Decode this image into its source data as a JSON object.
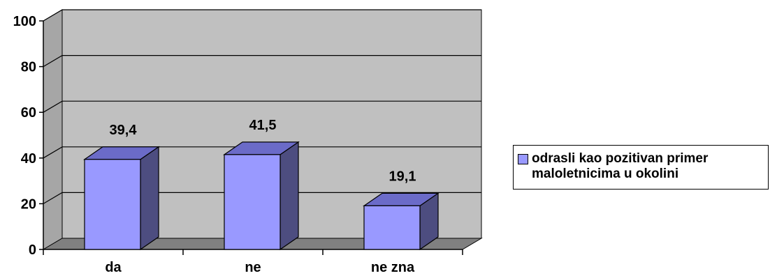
{
  "chart_data": {
    "type": "bar",
    "categories": [
      "da",
      "ne",
      "ne zna"
    ],
    "series": [
      {
        "name": "odrasli kao pozitivan primer maloletnicima u okolini",
        "values": [
          39.4,
          41.5,
          19.1
        ]
      }
    ],
    "data_labels": [
      "39,4",
      "41,5",
      "19,1"
    ],
    "y_ticks": [
      "0",
      "20",
      "40",
      "60",
      "80",
      "100"
    ],
    "ylim": [
      0,
      100
    ],
    "grid": true,
    "legend_position": "right",
    "colors": {
      "bar_front": "#9999ff",
      "bar_side": "#4d4d80",
      "bar_top": "#6b6bc8",
      "wall": "#c0c0c0",
      "floor": "#808080",
      "grid": "#000000"
    }
  }
}
